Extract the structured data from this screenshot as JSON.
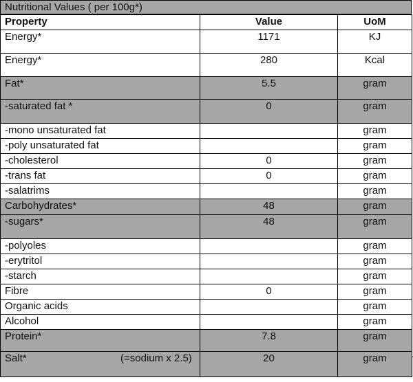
{
  "title": "Nutritional Values ( per 100g*)",
  "headers": {
    "property": "Property",
    "value": "Value",
    "uom": "UoM"
  },
  "rows": [
    {
      "property": "Energy*",
      "value": "1171",
      "uom": "KJ"
    },
    {
      "property": "Energy*",
      "value": "280",
      "uom": "Kcal"
    },
    {
      "property": "Fat*",
      "value": "5.5",
      "uom": "gram"
    },
    {
      "property": "-saturated fat *",
      "value": "0",
      "uom": "gram"
    },
    {
      "property": "-mono unsaturated fat",
      "value": "",
      "uom": "gram"
    },
    {
      "property": "-poly unsaturated fat",
      "value": "",
      "uom": "gram"
    },
    {
      "property": "-cholesterol",
      "value": "0",
      "uom": "gram"
    },
    {
      "property": "-trans fat",
      "value": "0",
      "uom": "gram"
    },
    {
      "property": "-salatrims",
      "value": "",
      "uom": "gram"
    },
    {
      "property": "Carbohydrates*",
      "value": "48",
      "uom": "gram"
    },
    {
      "property": "-sugars*",
      "value": "48",
      "uom": "gram"
    },
    {
      "property": "-polyoles",
      "value": "",
      "uom": "gram"
    },
    {
      "property": "-erytritol",
      "value": "",
      "uom": "gram"
    },
    {
      "property": "-starch",
      "value": "",
      "uom": "gram"
    },
    {
      "property": "Fibre",
      "value": "0",
      "uom": "gram"
    },
    {
      "property": "Organic acids",
      "value": "",
      "uom": "gram"
    },
    {
      "property": "Alcohol",
      "value": "",
      "uom": "gram"
    },
    {
      "property": "Protein*",
      "value": "7.8",
      "uom": "gram"
    },
    {
      "property": "Salt*",
      "note": "(=sodium x 2.5)",
      "value": "20",
      "uom": "gram"
    }
  ],
  "colors": {
    "shade": "#a6a6a6"
  }
}
